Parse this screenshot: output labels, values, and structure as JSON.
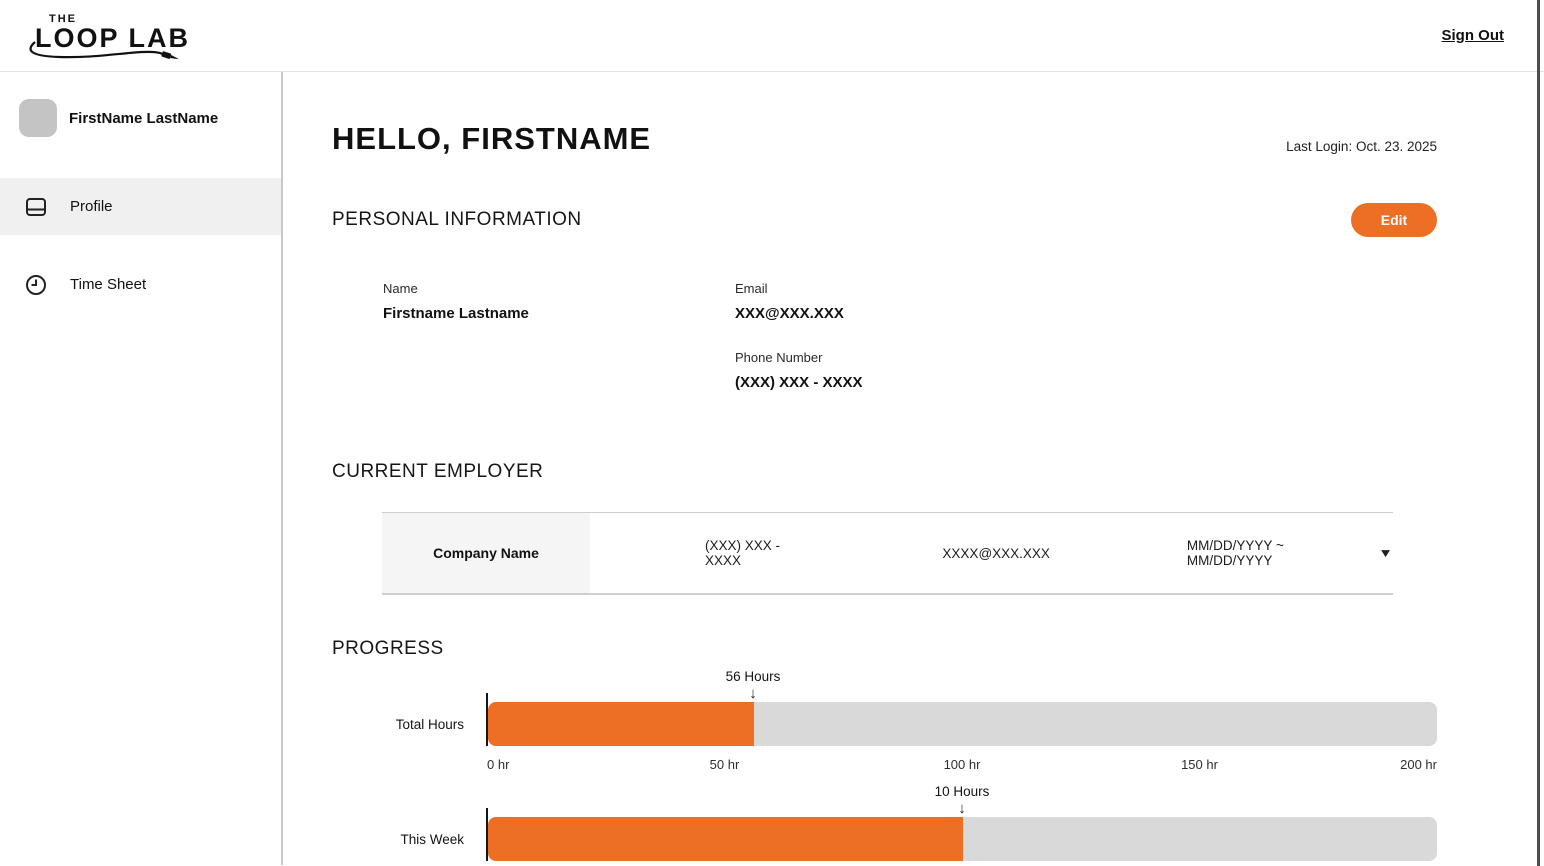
{
  "header": {
    "logo_the": "THE",
    "logo_main": "LOOP LAB",
    "sign_out": "Sign Out"
  },
  "sidebar": {
    "user_name": "FirstName LastName",
    "items": [
      {
        "label": "Profile",
        "icon": "id-card-icon",
        "active": true
      },
      {
        "label": "Time Sheet",
        "icon": "clock-icon",
        "active": false
      }
    ]
  },
  "main": {
    "greeting": "HELLO, FIRSTNAME",
    "last_login": "Last Login: Oct. 23. 2025",
    "personal_info": {
      "title": "PERSONAL INFORMATION",
      "edit_label": "Edit",
      "name_label": "Name",
      "name_value": "Firstname Lastname",
      "email_label": "Email",
      "email_value": "XXX@XXX.XXX",
      "phone_label": "Phone Number",
      "phone_value": "(XXX) XXX - XXXX"
    },
    "employer": {
      "title": "CURRENT EMPLOYER",
      "company": "Company Name",
      "phone": "(XXX) XXX - XXXX",
      "email": "XXXX@XXX.XXX",
      "dates": "MM/DD/YYYY ~ MM/DD/YYYY",
      "expander_icon": "chevron-down-icon"
    },
    "progress_title": "PROGRESS"
  },
  "chart_data": [
    {
      "type": "bar",
      "orientation": "horizontal",
      "label": "Total Hours",
      "value": 56,
      "value_label": "56 Hours",
      "xlim": [
        0,
        200
      ],
      "ticks": [
        "0 hr",
        "50 hr",
        "100 hr",
        "150 hr",
        "200 hr"
      ],
      "bar_color": "#ed6f24",
      "track_color": "#d9d9d9"
    },
    {
      "type": "bar",
      "orientation": "horizontal",
      "label": "This Week",
      "value": 10,
      "value_label": "10 Hours",
      "xlim": [
        0,
        20
      ],
      "ticks": [],
      "bar_color": "#ed6f24",
      "track_color": "#d9d9d9"
    }
  ],
  "colors": {
    "accent": "#ed6f24",
    "bar_track": "#d9d9d9",
    "sidebar_active_bg": "#f0f0f0",
    "avatar_bg": "#c4c4c4",
    "company_cell_bg": "#f5f5f5"
  }
}
